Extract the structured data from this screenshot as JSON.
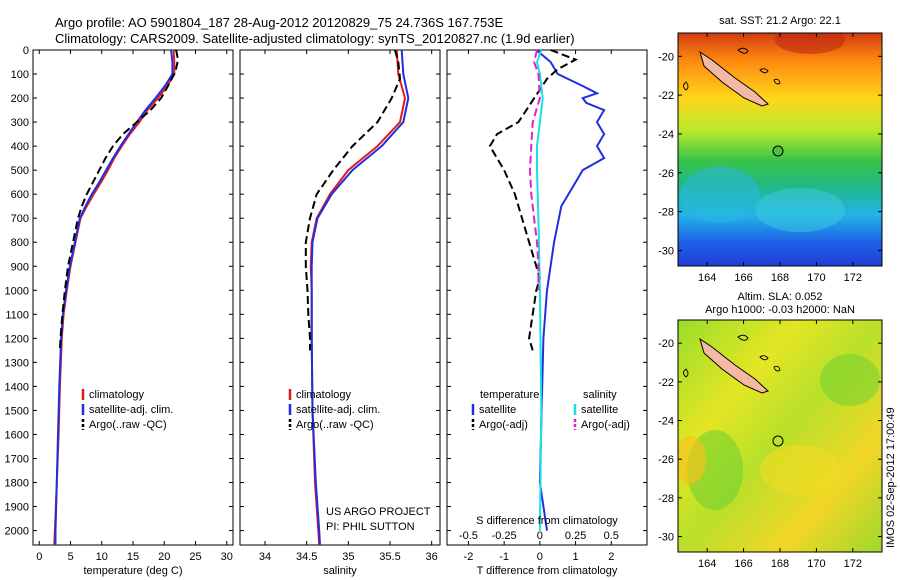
{
  "header": {
    "line1": "Argo profile: AO 5901804_187 28-Aug-2012 20120829_75 24.736S 167.753E",
    "line2": "Climatology: CARS2009. Satellite-adjusted climatology: synTS_20120827.nc (1.9d earlier)"
  },
  "footer": {
    "credit_line1": "US ARGO PROJECT",
    "credit_line2": "PI: PHIL SUTTON",
    "side_stamp": "IMOS 02-Sep-2012 17:00:49"
  },
  "colors": {
    "climatology": "#e41a1c",
    "satellite": "#1f2fe0",
    "argo": "#000000",
    "salinity_satellite": "#18e0e8",
    "salinity_argo": "#e020d0"
  },
  "chart_data": [
    {
      "id": "temperature",
      "type": "line",
      "xlabel": "temperature (deg C)",
      "ylabel": "",
      "xlim": [
        -1,
        31
      ],
      "ylim": [
        2060,
        0
      ],
      "xticks": [
        0,
        5,
        10,
        15,
        20,
        25,
        30
      ],
      "yticks": [
        0,
        100,
        200,
        300,
        400,
        500,
        600,
        700,
        800,
        900,
        1000,
        1100,
        1200,
        1300,
        1400,
        1500,
        1600,
        1700,
        1800,
        1900,
        2000
      ],
      "legend": [
        "climatology",
        "satellite-adj. clim.",
        "Argo(..raw -QC)"
      ],
      "series": [
        {
          "name": "climatology",
          "color": "#e41a1c",
          "dash": "",
          "points": [
            [
              21.5,
              0
            ],
            [
              21.6,
              50
            ],
            [
              21.6,
              100
            ],
            [
              20.5,
              150
            ],
            [
              19.0,
              200
            ],
            [
              17.3,
              250
            ],
            [
              16.0,
              300
            ],
            [
              14.5,
              350
            ],
            [
              13.2,
              400
            ],
            [
              12.0,
              450
            ],
            [
              11.0,
              500
            ],
            [
              9.9,
              550
            ],
            [
              8.7,
              600
            ],
            [
              7.6,
              650
            ],
            [
              6.6,
              700
            ],
            [
              5.8,
              800
            ],
            [
              5.0,
              900
            ],
            [
              4.4,
              1000
            ],
            [
              3.9,
              1100
            ],
            [
              3.6,
              1200
            ],
            [
              3.3,
              1400
            ],
            [
              3.1,
              1600
            ],
            [
              2.8,
              1800
            ],
            [
              2.5,
              2000
            ],
            [
              2.4,
              2060
            ]
          ]
        },
        {
          "name": "satellite-adj. clim.",
          "color": "#1f2fe0",
          "dash": "",
          "points": [
            [
              21.1,
              0
            ],
            [
              21.3,
              50
            ],
            [
              21.3,
              100
            ],
            [
              20.1,
              150
            ],
            [
              18.6,
              200
            ],
            [
              17.0,
              250
            ],
            [
              15.6,
              300
            ],
            [
              14.3,
              350
            ],
            [
              13.0,
              400
            ],
            [
              11.8,
              450
            ],
            [
              10.7,
              500
            ],
            [
              9.6,
              550
            ],
            [
              8.4,
              600
            ],
            [
              7.4,
              650
            ],
            [
              6.5,
              700
            ],
            [
              5.7,
              800
            ],
            [
              4.9,
              900
            ],
            [
              4.3,
              1000
            ],
            [
              3.8,
              1100
            ],
            [
              3.5,
              1200
            ],
            [
              3.2,
              1400
            ],
            [
              3.0,
              1600
            ],
            [
              2.8,
              1800
            ],
            [
              2.6,
              2000
            ],
            [
              2.6,
              2060
            ]
          ]
        },
        {
          "name": "Argo(..raw -QC)",
          "color": "#000000",
          "dash": "8,4",
          "points": [
            [
              21.9,
              0
            ],
            [
              22.2,
              40
            ],
            [
              21.8,
              90
            ],
            [
              20.6,
              150
            ],
            [
              19.5,
              200
            ],
            [
              17.8,
              250
            ],
            [
              15.6,
              300
            ],
            [
              13.4,
              350
            ],
            [
              11.8,
              400
            ],
            [
              10.6,
              450
            ],
            [
              9.6,
              500
            ],
            [
              8.6,
              550
            ],
            [
              7.6,
              600
            ],
            [
              6.8,
              650
            ],
            [
              6.2,
              700
            ],
            [
              5.4,
              800
            ],
            [
              4.6,
              900
            ],
            [
              4.1,
              1000
            ],
            [
              3.7,
              1100
            ],
            [
              3.4,
              1200
            ],
            [
              3.3,
              1250
            ]
          ]
        }
      ]
    },
    {
      "id": "salinity",
      "type": "line",
      "xlabel": "salinity",
      "ylabel": "",
      "xlim": [
        33.7,
        36.1
      ],
      "ylim": [
        2060,
        0
      ],
      "xticks": [
        34,
        34.5,
        35,
        35.5,
        36
      ],
      "legend": [
        "climatology",
        "satellite-adj. clim.",
        "Argo(..raw -QC)"
      ],
      "series": [
        {
          "name": "climatology",
          "color": "#e41a1c",
          "dash": "",
          "points": [
            [
              35.58,
              0
            ],
            [
              35.6,
              100
            ],
            [
              35.68,
              200
            ],
            [
              35.62,
              300
            ],
            [
              35.35,
              400
            ],
            [
              35.0,
              500
            ],
            [
              34.78,
              600
            ],
            [
              34.62,
              700
            ],
            [
              34.56,
              800
            ],
            [
              34.55,
              900
            ],
            [
              34.56,
              1000
            ],
            [
              34.56,
              1200
            ],
            [
              34.57,
              1500
            ],
            [
              34.6,
              1800
            ],
            [
              34.64,
              2000
            ],
            [
              34.65,
              2060
            ]
          ]
        },
        {
          "name": "satellite-adj. clim.",
          "color": "#1f2fe0",
          "dash": "",
          "points": [
            [
              35.64,
              0
            ],
            [
              35.66,
              100
            ],
            [
              35.72,
              200
            ],
            [
              35.66,
              300
            ],
            [
              35.4,
              400
            ],
            [
              35.05,
              500
            ],
            [
              34.8,
              600
            ],
            [
              34.63,
              700
            ],
            [
              34.57,
              800
            ],
            [
              34.56,
              900
            ],
            [
              34.56,
              1000
            ],
            [
              34.56,
              1200
            ],
            [
              34.57,
              1500
            ],
            [
              34.61,
              1800
            ],
            [
              34.65,
              2000
            ],
            [
              34.66,
              2060
            ]
          ]
        },
        {
          "name": "Argo(..raw -QC)",
          "color": "#000000",
          "dash": "8,4",
          "points": [
            [
              35.56,
              0
            ],
            [
              35.6,
              50
            ],
            [
              35.62,
              120
            ],
            [
              35.52,
              200
            ],
            [
              35.35,
              300
            ],
            [
              35.05,
              400
            ],
            [
              34.82,
              500
            ],
            [
              34.62,
              600
            ],
            [
              34.54,
              700
            ],
            [
              34.49,
              800
            ],
            [
              34.49,
              900
            ],
            [
              34.51,
              1000
            ],
            [
              34.52,
              1100
            ],
            [
              34.54,
              1200
            ],
            [
              34.54,
              1250
            ]
          ]
        }
      ]
    },
    {
      "id": "difference",
      "type": "line",
      "xlabel": "T difference from climatology",
      "x2label": "S difference from climatology",
      "ylabel": "",
      "xlim": [
        -2.6,
        3.0
      ],
      "x2lim": [
        -0.65,
        0.75
      ],
      "ylim": [
        2060,
        0
      ],
      "xticks": [
        -2,
        -1,
        0,
        1,
        2
      ],
      "x2ticks": [
        "-0.5",
        "-0.25",
        "0",
        "0.25",
        "0.5"
      ],
      "legend_temperature_title": "temperature",
      "legend_salinity_title": "salinity",
      "legend_temperature": [
        "satellite",
        "Argo(-adj)"
      ],
      "legend_salinity": [
        "satellite",
        "Argo(-adj)"
      ],
      "series": [
        {
          "name": "satellite",
          "group": "temperature",
          "color": "#1f2fe0",
          "dash": "",
          "points": [
            [
              -0.1,
              0
            ],
            [
              0.3,
              50
            ],
            [
              0.5,
              100
            ],
            [
              1.2,
              150
            ],
            [
              1.6,
              180
            ],
            [
              1.2,
              200
            ],
            [
              1.3,
              220
            ],
            [
              1.8,
              250
            ],
            [
              1.6,
              300
            ],
            [
              1.8,
              350
            ],
            [
              1.6,
              400
            ],
            [
              1.8,
              450
            ],
            [
              1.2,
              500
            ],
            [
              1.0,
              550
            ],
            [
              0.6,
              650
            ],
            [
              0.4,
              800
            ],
            [
              0.2,
              1000
            ],
            [
              0.1,
              1200
            ],
            [
              0.05,
              1500
            ],
            [
              0.0,
              1800
            ],
            [
              0.2,
              2000
            ]
          ]
        },
        {
          "name": "Argo(-adj)",
          "group": "temperature",
          "color": "#000000",
          "dash": "8,4",
          "points": [
            [
              0.3,
              0
            ],
            [
              1.0,
              40
            ],
            [
              0.5,
              80
            ],
            [
              0.2,
              120
            ],
            [
              -0.6,
              300
            ],
            [
              -1.2,
              350
            ],
            [
              -1.4,
              400
            ],
            [
              -1.2,
              450
            ],
            [
              -1.0,
              500
            ],
            [
              -0.7,
              600
            ],
            [
              -0.5,
              700
            ],
            [
              -0.3,
              800
            ],
            [
              -0.1,
              900
            ],
            [
              0.0,
              950
            ],
            [
              -0.1,
              1000
            ],
            [
              -0.2,
              1100
            ],
            [
              -0.3,
              1200
            ],
            [
              -0.2,
              1250
            ]
          ]
        },
        {
          "name": "satellite",
          "group": "salinity",
          "color": "#18e0e8",
          "dash": "",
          "points": [
            [
              0.01,
              0
            ],
            [
              -0.02,
              50
            ],
            [
              0.0,
              100
            ],
            [
              0.02,
              200
            ],
            [
              0.0,
              300
            ],
            [
              -0.02,
              400
            ],
            [
              -0.02,
              500
            ],
            [
              -0.01,
              700
            ],
            [
              0.0,
              1000
            ],
            [
              0.01,
              1500
            ],
            [
              0.0,
              2000
            ]
          ]
        },
        {
          "name": "Argo(-adj)",
          "group": "salinity",
          "color": "#e020d0",
          "dash": "8,4",
          "points": [
            [
              -0.02,
              0
            ],
            [
              -0.04,
              50
            ],
            [
              -0.01,
              100
            ],
            [
              0.0,
              200
            ],
            [
              -0.05,
              300
            ],
            [
              -0.06,
              400
            ],
            [
              -0.07,
              500
            ],
            [
              -0.06,
              600
            ],
            [
              -0.04,
              700
            ],
            [
              -0.02,
              800
            ],
            [
              -0.01,
              900
            ],
            [
              -0.01,
              1000
            ]
          ]
        }
      ]
    },
    {
      "id": "map-sst",
      "type": "heatmap",
      "title": "sat. SST: 21.2 Argo: 22.1",
      "xticks": [
        "164",
        "166",
        "168",
        "170",
        "172"
      ],
      "yticks": [
        "-20",
        "-22",
        "-24",
        "-26",
        "-28",
        "-30"
      ],
      "argo_position": {
        "lon": 167.753,
        "lat": -24.736
      }
    },
    {
      "id": "map-sla",
      "type": "heatmap",
      "title1": "Altim. SLA: 0.052",
      "title2": "Argo h1000: -0.03 h2000: NaN",
      "xticks": [
        "164",
        "166",
        "168",
        "170",
        "172"
      ],
      "yticks": [
        "-20",
        "-22",
        "-24",
        "-26",
        "-28",
        "-30"
      ],
      "argo_position": {
        "lon": 167.753,
        "lat": -24.736
      }
    }
  ]
}
